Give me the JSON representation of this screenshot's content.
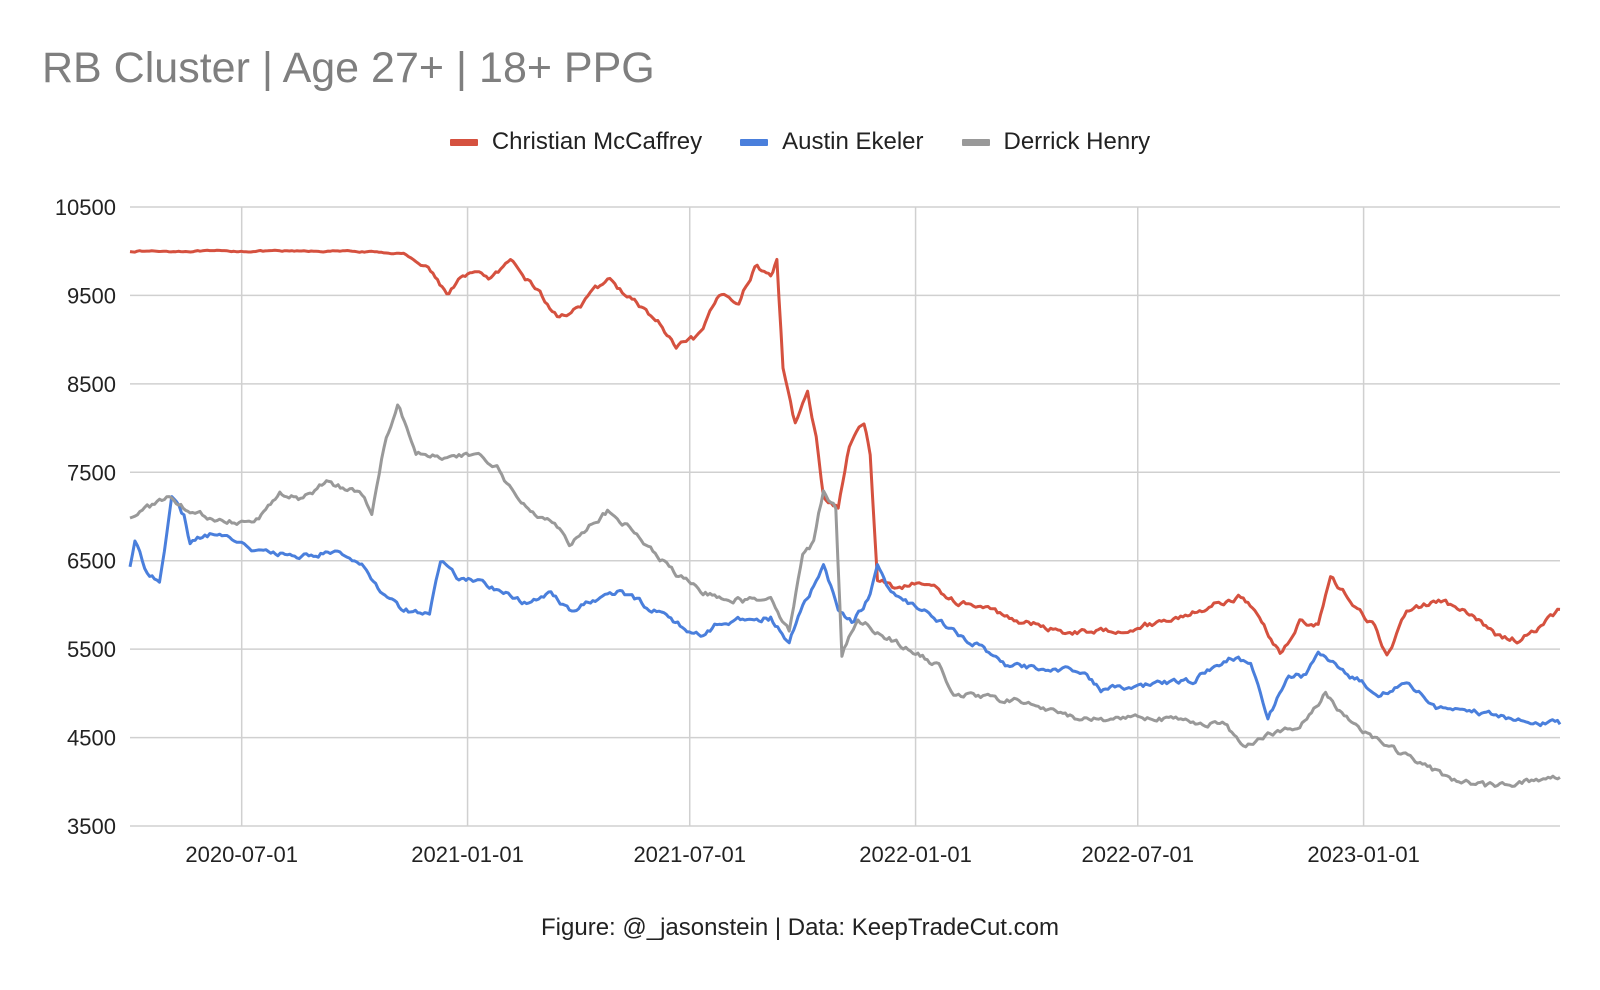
{
  "chart_data": {
    "type": "line",
    "title": "RB Cluster | Age 27+ | 18+ PPG",
    "footer": "Figure: @_jasonstein | Data: KeepTradeCut.com",
    "xlabel": "",
    "ylabel": "",
    "ylim": [
      3500,
      10500
    ],
    "xlim": [
      "2020-04-01",
      "2023-06-10"
    ],
    "yticks": [
      10500,
      9500,
      8500,
      7500,
      6500,
      5500,
      4500,
      3500
    ],
    "xticks": [
      "2020-07-01",
      "2021-01-01",
      "2021-07-01",
      "2022-01-01",
      "2022-07-01",
      "2023-01-01"
    ],
    "grid": true,
    "legend_position": "top-center",
    "series": [
      {
        "name": "Christian McCaffrey",
        "color": "#d5513f",
        "points": [
          [
            "2020-04-01",
            10000
          ],
          [
            "2020-06-01",
            10000
          ],
          [
            "2020-08-01",
            10000
          ],
          [
            "2020-10-01",
            10000
          ],
          [
            "2020-11-10",
            9970
          ],
          [
            "2020-11-30",
            9820
          ],
          [
            "2020-12-15",
            9520
          ],
          [
            "2021-01-01",
            9760
          ],
          [
            "2021-01-20",
            9700
          ],
          [
            "2021-02-05",
            9860
          ],
          [
            "2021-02-25",
            9600
          ],
          [
            "2021-03-15",
            9250
          ],
          [
            "2021-04-05",
            9400
          ],
          [
            "2021-04-25",
            9700
          ],
          [
            "2021-05-15",
            9450
          ],
          [
            "2021-06-05",
            9200
          ],
          [
            "2021-06-20",
            8900
          ],
          [
            "2021-07-10",
            9050
          ],
          [
            "2021-07-25",
            9500
          ],
          [
            "2021-08-10",
            9450
          ],
          [
            "2021-08-25",
            9850
          ],
          [
            "2021-09-05",
            9700
          ],
          [
            "2021-09-10",
            9900
          ],
          [
            "2021-09-15",
            8700
          ],
          [
            "2021-09-25",
            8050
          ],
          [
            "2021-10-05",
            8450
          ],
          [
            "2021-10-12",
            7900
          ],
          [
            "2021-10-18",
            7200
          ],
          [
            "2021-10-30",
            7100
          ],
          [
            "2021-11-08",
            7800
          ],
          [
            "2021-11-20",
            8050
          ],
          [
            "2021-11-25",
            7700
          ],
          [
            "2021-12-01",
            6300
          ],
          [
            "2021-12-15",
            6200
          ],
          [
            "2022-01-10",
            6250
          ],
          [
            "2022-02-01",
            6050
          ],
          [
            "2022-03-01",
            5950
          ],
          [
            "2022-04-01",
            5800
          ],
          [
            "2022-05-01",
            5700
          ],
          [
            "2022-06-01",
            5700
          ],
          [
            "2022-07-01",
            5750
          ],
          [
            "2022-08-01",
            5850
          ],
          [
            "2022-09-01",
            6000
          ],
          [
            "2022-09-25",
            6100
          ],
          [
            "2022-10-10",
            5800
          ],
          [
            "2022-10-25",
            5450
          ],
          [
            "2022-11-10",
            5800
          ],
          [
            "2022-11-25",
            5800
          ],
          [
            "2022-12-05",
            6300
          ],
          [
            "2022-12-25",
            6000
          ],
          [
            "2023-01-10",
            5750
          ],
          [
            "2023-01-20",
            5400
          ],
          [
            "2023-02-05",
            5950
          ],
          [
            "2023-03-05",
            6050
          ],
          [
            "2023-04-01",
            5850
          ],
          [
            "2023-04-20",
            5650
          ],
          [
            "2023-05-10",
            5600
          ],
          [
            "2023-06-10",
            5950
          ]
        ]
      },
      {
        "name": "Austin Ekeler",
        "color": "#4a7fdc",
        "points": [
          [
            "2020-04-01",
            6450
          ],
          [
            "2020-04-05",
            6700
          ],
          [
            "2020-04-15",
            6350
          ],
          [
            "2020-04-25",
            6300
          ],
          [
            "2020-05-05",
            7200
          ],
          [
            "2020-05-15",
            7000
          ],
          [
            "2020-05-20",
            6700
          ],
          [
            "2020-06-05",
            6800
          ],
          [
            "2020-06-25",
            6750
          ],
          [
            "2020-07-15",
            6600
          ],
          [
            "2020-08-15",
            6550
          ],
          [
            "2020-09-15",
            6600
          ],
          [
            "2020-10-05",
            6500
          ],
          [
            "2020-10-20",
            6200
          ],
          [
            "2020-11-10",
            5950
          ],
          [
            "2020-12-01",
            5900
          ],
          [
            "2020-12-10",
            6500
          ],
          [
            "2020-12-25",
            6300
          ],
          [
            "2021-01-15",
            6250
          ],
          [
            "2021-02-05",
            6100
          ],
          [
            "2021-02-20",
            6000
          ],
          [
            "2021-03-10",
            6150
          ],
          [
            "2021-03-25",
            5950
          ],
          [
            "2021-04-15",
            6050
          ],
          [
            "2021-05-05",
            6150
          ],
          [
            "2021-05-25",
            6000
          ],
          [
            "2021-06-10",
            5900
          ],
          [
            "2021-06-25",
            5750
          ],
          [
            "2021-07-10",
            5650
          ],
          [
            "2021-07-25",
            5800
          ],
          [
            "2021-08-15",
            5850
          ],
          [
            "2021-09-05",
            5850
          ],
          [
            "2021-09-20",
            5550
          ],
          [
            "2021-10-01",
            6000
          ],
          [
            "2021-10-10",
            6200
          ],
          [
            "2021-10-18",
            6450
          ],
          [
            "2021-10-30",
            5950
          ],
          [
            "2021-11-10",
            5800
          ],
          [
            "2021-11-25",
            6100
          ],
          [
            "2021-12-01",
            6450
          ],
          [
            "2021-12-10",
            6200
          ],
          [
            "2021-12-20",
            6050
          ],
          [
            "2022-01-10",
            5950
          ],
          [
            "2022-02-01",
            5700
          ],
          [
            "2022-02-20",
            5550
          ],
          [
            "2022-03-15",
            5300
          ],
          [
            "2022-04-15",
            5300
          ],
          [
            "2022-05-15",
            5250
          ],
          [
            "2022-06-01",
            5050
          ],
          [
            "2022-06-20",
            5050
          ],
          [
            "2022-07-15",
            5100
          ],
          [
            "2022-08-15",
            5150
          ],
          [
            "2022-09-15",
            5400
          ],
          [
            "2022-10-01",
            5350
          ],
          [
            "2022-10-15",
            4700
          ],
          [
            "2022-11-01",
            5200
          ],
          [
            "2022-11-15",
            5200
          ],
          [
            "2022-11-25",
            5450
          ],
          [
            "2022-12-15",
            5250
          ],
          [
            "2023-01-15",
            5000
          ],
          [
            "2023-02-05",
            5100
          ],
          [
            "2023-03-01",
            4850
          ],
          [
            "2023-04-01",
            4800
          ],
          [
            "2023-05-01",
            4700
          ],
          [
            "2023-06-10",
            4650
          ]
        ]
      },
      {
        "name": "Derrick Henry",
        "color": "#999999",
        "points": [
          [
            "2020-04-01",
            7000
          ],
          [
            "2020-04-15",
            7100
          ],
          [
            "2020-05-01",
            7200
          ],
          [
            "2020-05-20",
            7050
          ],
          [
            "2020-06-15",
            6950
          ],
          [
            "2020-07-01",
            6950
          ],
          [
            "2020-07-15",
            7000
          ],
          [
            "2020-08-01",
            7250
          ],
          [
            "2020-08-20",
            7200
          ],
          [
            "2020-09-10",
            7400
          ],
          [
            "2020-09-25",
            7300
          ],
          [
            "2020-10-05",
            7300
          ],
          [
            "2020-10-15",
            7050
          ],
          [
            "2020-10-25",
            7800
          ],
          [
            "2020-11-05",
            8300
          ],
          [
            "2020-11-20",
            7750
          ],
          [
            "2020-12-15",
            7650
          ],
          [
            "2021-01-10",
            7700
          ],
          [
            "2021-01-25",
            7550
          ],
          [
            "2021-02-10",
            7200
          ],
          [
            "2021-02-25",
            7050
          ],
          [
            "2021-03-15",
            6900
          ],
          [
            "2021-03-25",
            6700
          ],
          [
            "2021-04-10",
            6900
          ],
          [
            "2021-04-25",
            7050
          ],
          [
            "2021-05-15",
            6850
          ],
          [
            "2021-06-01",
            6600
          ],
          [
            "2021-06-20",
            6350
          ],
          [
            "2021-07-10",
            6150
          ],
          [
            "2021-07-25",
            6100
          ],
          [
            "2021-08-15",
            6050
          ],
          [
            "2021-09-05",
            6100
          ],
          [
            "2021-09-20",
            5700
          ],
          [
            "2021-10-01",
            6600
          ],
          [
            "2021-10-10",
            6700
          ],
          [
            "2021-10-18",
            7300
          ],
          [
            "2021-10-28",
            7100
          ],
          [
            "2021-11-02",
            5450
          ],
          [
            "2021-11-15",
            5850
          ],
          [
            "2021-12-01",
            5700
          ],
          [
            "2021-12-20",
            5550
          ],
          [
            "2022-01-01",
            5450
          ],
          [
            "2022-01-20",
            5300
          ],
          [
            "2022-02-01",
            5000
          ],
          [
            "2022-03-01",
            4950
          ],
          [
            "2022-04-01",
            4900
          ],
          [
            "2022-05-01",
            4750
          ],
          [
            "2022-06-01",
            4700
          ],
          [
            "2022-07-01",
            4750
          ],
          [
            "2022-08-01",
            4700
          ],
          [
            "2022-09-10",
            4650
          ],
          [
            "2022-09-25",
            4400
          ],
          [
            "2022-10-15",
            4550
          ],
          [
            "2022-11-10",
            4600
          ],
          [
            "2022-12-01",
            5000
          ],
          [
            "2022-12-20",
            4700
          ],
          [
            "2023-01-10",
            4500
          ],
          [
            "2023-02-10",
            4250
          ],
          [
            "2023-03-10",
            4050
          ],
          [
            "2023-04-10",
            3950
          ],
          [
            "2023-05-10",
            4000
          ],
          [
            "2023-06-10",
            4050
          ]
        ]
      }
    ]
  }
}
